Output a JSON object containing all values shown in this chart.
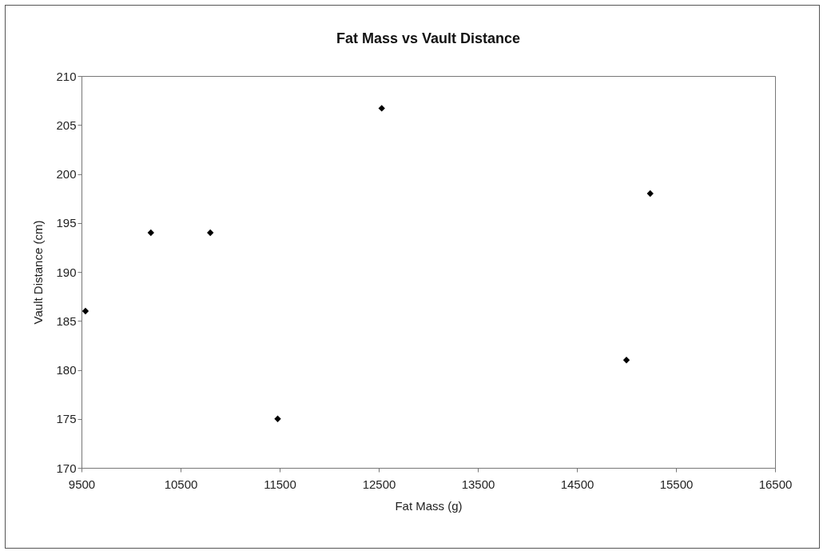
{
  "chart_data": {
    "type": "scatter",
    "title": "Fat Mass vs Vault Distance",
    "xlabel": "Fat Mass (g)",
    "ylabel": "Vault Distance (cm)",
    "x": [
      9540,
      10200,
      10800,
      11480,
      12530,
      15000,
      15240
    ],
    "series": [
      {
        "color": "#000000",
        "values": [
          186,
          194,
          194,
          175,
          206.7,
          181,
          198
        ]
      }
    ],
    "xlim": [
      9500,
      16500
    ],
    "xticks": [
      9500,
      10500,
      11500,
      12500,
      13500,
      14500,
      15500,
      16500
    ],
    "ylim": [
      170,
      210
    ],
    "yticks": [
      170,
      175,
      180,
      185,
      190,
      195,
      200,
      205,
      210
    ],
    "marker": "diamond",
    "grid": false
  }
}
